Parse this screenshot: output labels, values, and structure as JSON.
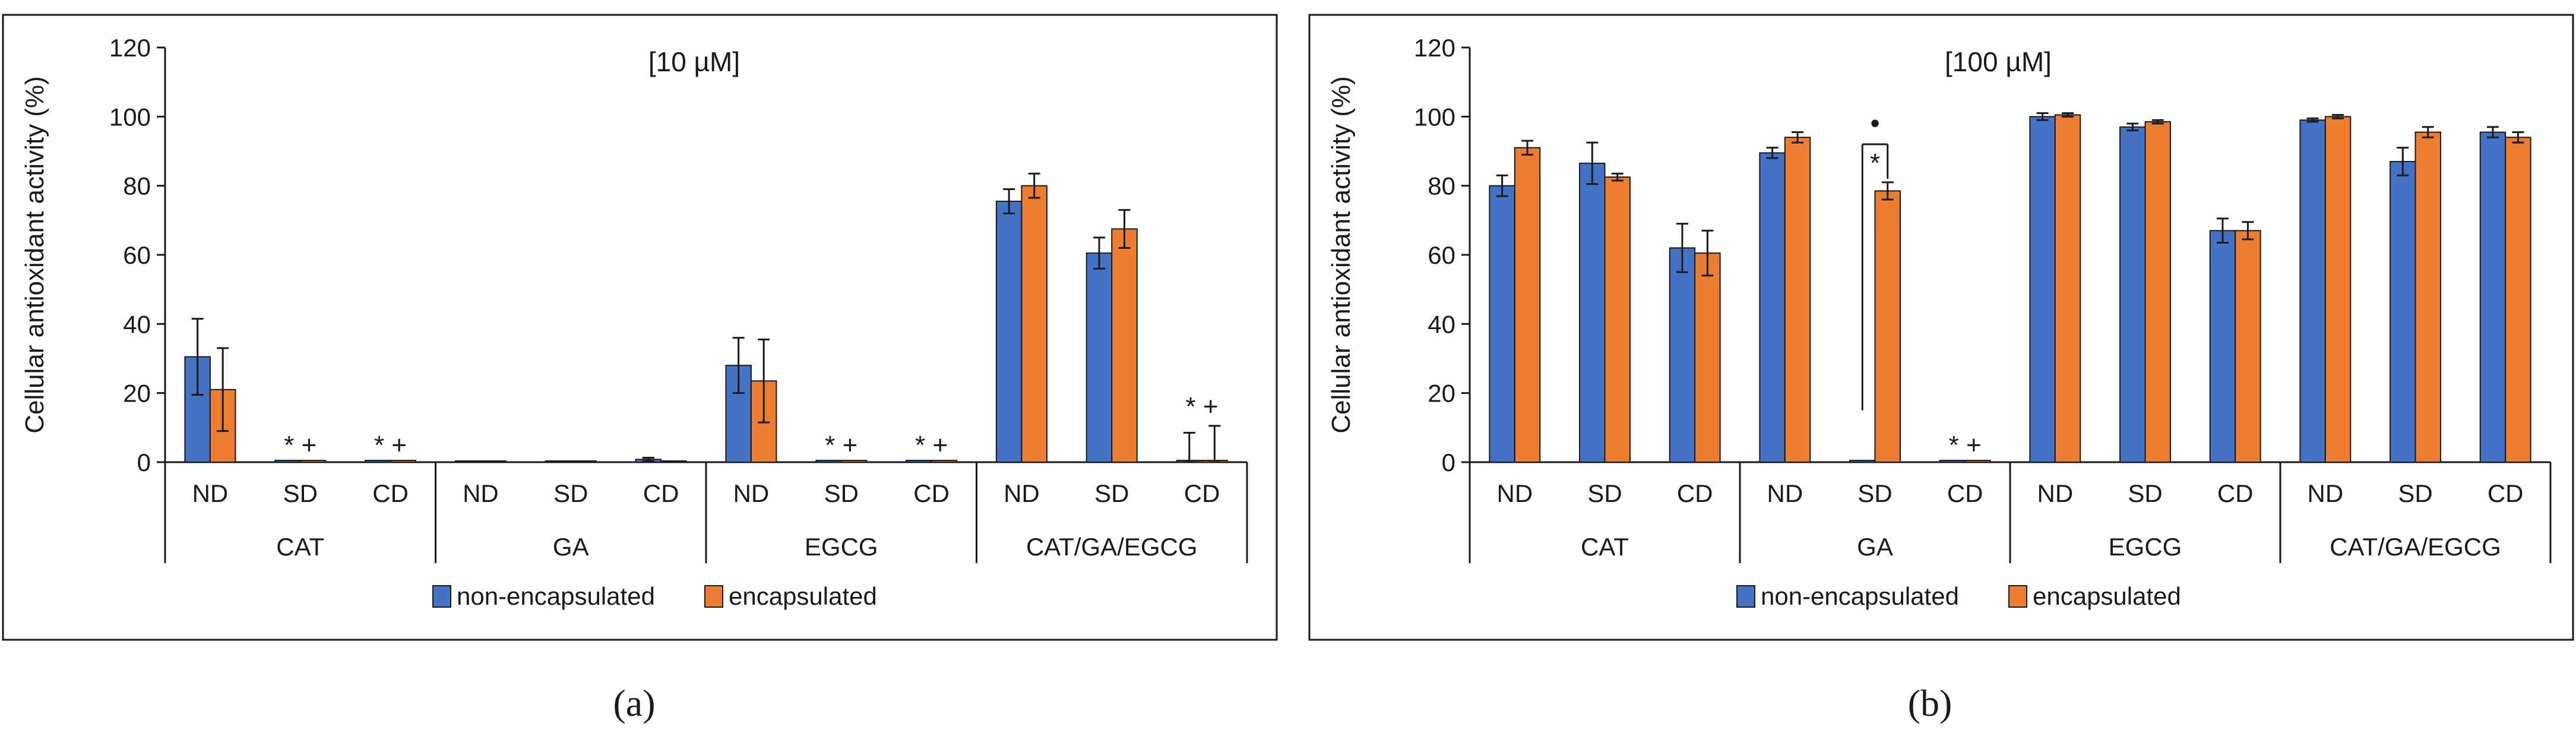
{
  "chart_data": [
    {
      "type": "bar",
      "panel_label": "(a)",
      "title": "[10 µM]",
      "ylabel": "Cellular antioxidant activity  (%)",
      "ylim": [
        0,
        120
      ],
      "yticks": [
        0,
        20,
        40,
        60,
        80,
        100,
        120
      ],
      "groups": [
        {
          "name": "CAT",
          "categories": [
            "ND",
            "SD",
            "CD"
          ]
        },
        {
          "name": "GA",
          "categories": [
            "ND",
            "SD",
            "CD"
          ]
        },
        {
          "name": "EGCG",
          "categories": [
            "ND",
            "SD",
            "CD"
          ]
        },
        {
          "name": "CAT/GA/EGCG",
          "categories": [
            "ND",
            "SD",
            "CD"
          ]
        }
      ],
      "series": [
        {
          "name": "non-encapsulated",
          "color": "#4472C4",
          "values": [
            30.5,
            0.5,
            0.5,
            0.3,
            0.3,
            0.8,
            28,
            0.5,
            0.5,
            75.5,
            60.5,
            0.5
          ],
          "errors": [
            11,
            0,
            0,
            0,
            0,
            0.5,
            8,
            0,
            0,
            3.5,
            4.5,
            8
          ]
        },
        {
          "name": "encapsulated",
          "color": "#ED7D31",
          "values": [
            21,
            0.5,
            0.5,
            0.3,
            0.3,
            0.3,
            23.5,
            0.5,
            0.5,
            80,
            67.5,
            0.5
          ],
          "errors": [
            12,
            0,
            0,
            0,
            0,
            0,
            12,
            0,
            0,
            3.5,
            5.5,
            10
          ]
        }
      ],
      "annotations": [
        {
          "index": 1,
          "text": "* +"
        },
        {
          "index": 2,
          "text": "* +"
        },
        {
          "index": 7,
          "text": "* +"
        },
        {
          "index": 8,
          "text": "* +"
        },
        {
          "index": 11,
          "text": "* +"
        }
      ],
      "legend": "bottom-center"
    },
    {
      "type": "bar",
      "panel_label": "(b)",
      "title": "[100 µM]",
      "ylabel": "Cellular antioxidant activity  (%)",
      "ylim": [
        0,
        120
      ],
      "yticks": [
        0,
        20,
        40,
        60,
        80,
        100,
        120
      ],
      "groups": [
        {
          "name": "CAT",
          "categories": [
            "ND",
            "SD",
            "CD"
          ]
        },
        {
          "name": "GA",
          "categories": [
            "ND",
            "SD",
            "CD"
          ]
        },
        {
          "name": "EGCG",
          "categories": [
            "ND",
            "SD",
            "CD"
          ]
        },
        {
          "name": "CAT/GA/EGCG",
          "categories": [
            "ND",
            "SD",
            "CD"
          ]
        }
      ],
      "series": [
        {
          "name": "non-encapsulated",
          "color": "#4472C4",
          "values": [
            80,
            86.5,
            62,
            89.5,
            0.5,
            0.5,
            100,
            97,
            67,
            99,
            87,
            95.5
          ],
          "errors": [
            3,
            6,
            7,
            1.5,
            0,
            0,
            1,
            1,
            3.5,
            0.5,
            4,
            1.5
          ]
        },
        {
          "name": "encapsulated",
          "color": "#ED7D31",
          "values": [
            91,
            82.5,
            60.5,
            94,
            78.5,
            0.5,
            100.5,
            98.5,
            67,
            100,
            95.5,
            94
          ],
          "errors": [
            2,
            1,
            6.5,
            1.5,
            2.5,
            0,
            0.5,
            0.5,
            2.5,
            0.5,
            1.5,
            1.5
          ]
        }
      ],
      "annotations": [
        {
          "index": 4,
          "text": "*"
        },
        {
          "index": 5,
          "text": "* +"
        },
        {
          "index": 4,
          "text": "•",
          "bracket": true
        }
      ],
      "legend": "bottom-center"
    }
  ]
}
